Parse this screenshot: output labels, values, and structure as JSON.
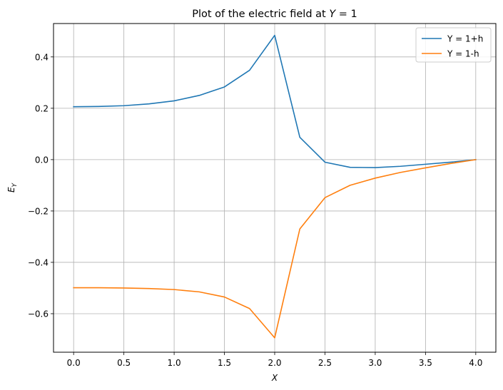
{
  "chart_data": {
    "type": "line",
    "title": "Plot of the electric field at Y = 1",
    "xlabel": "X",
    "ylabel": "E_Y",
    "xlim": [
      -0.2,
      4.2
    ],
    "ylim": [
      -0.75,
      0.53
    ],
    "xticks": [
      0.0,
      0.5,
      1.0,
      1.5,
      2.0,
      2.5,
      3.0,
      3.5,
      4.0
    ],
    "xtick_labels": [
      "0.0",
      "0.5",
      "1.0",
      "1.5",
      "2.0",
      "2.5",
      "3.0",
      "3.5",
      "4.0"
    ],
    "yticks": [
      -0.6,
      -0.4,
      -0.2,
      0.0,
      0.2,
      0.4
    ],
    "ytick_labels": [
      "−0.6",
      "−0.4",
      "−0.2",
      "0.0",
      "0.2",
      "0.4"
    ],
    "grid": true,
    "legend_position": "top-right",
    "x": [
      0.0,
      0.25,
      0.5,
      0.75,
      1.0,
      1.25,
      1.5,
      1.75,
      2.0,
      2.25,
      2.5,
      2.75,
      3.0,
      3.25,
      3.5,
      3.75,
      4.0
    ],
    "series": [
      {
        "name": "Y = 1+h",
        "color": "#1f77b4",
        "values": [
          0.206,
          0.207,
          0.21,
          0.217,
          0.229,
          0.25,
          0.283,
          0.348,
          0.484,
          0.087,
          -0.01,
          -0.03,
          -0.031,
          -0.026,
          -0.018,
          -0.01,
          0.0
        ]
      },
      {
        "name": "Y = 1-h",
        "color": "#ff7f0e",
        "values": [
          -0.499,
          -0.499,
          -0.5,
          -0.502,
          -0.506,
          -0.515,
          -0.535,
          -0.58,
          -0.694,
          -0.27,
          -0.148,
          -0.1,
          -0.072,
          -0.05,
          -0.032,
          -0.015,
          0.0
        ]
      }
    ]
  }
}
